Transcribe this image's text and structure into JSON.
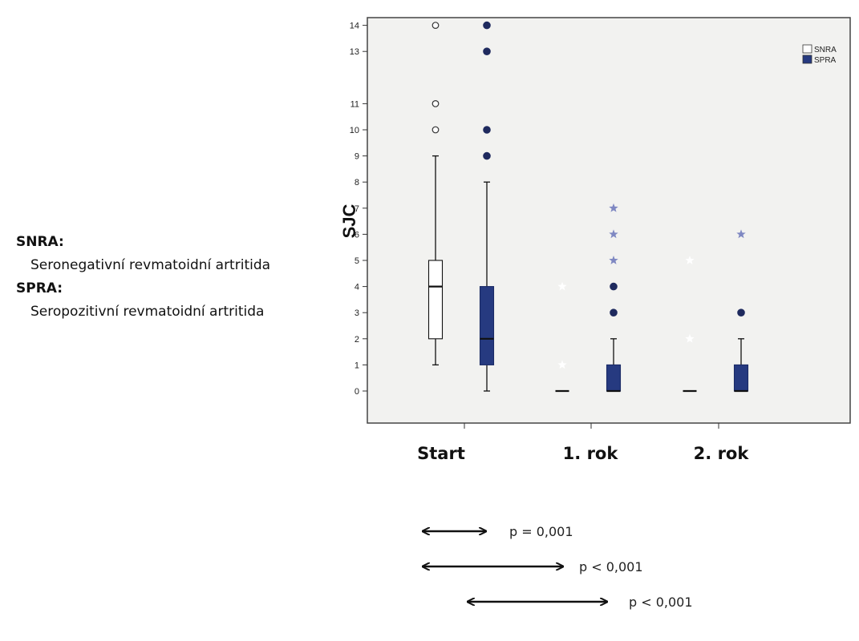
{
  "definitions": [
    {
      "term": "SNRA:",
      "description": "Seronegativní revmatoidní artritida"
    },
    {
      "term": "SPRA:",
      "description": "Seropozitivní revmatoidní artritida"
    }
  ],
  "chart_data": {
    "type": "boxplot",
    "ylabel": "SJC",
    "xlabel": "",
    "ylim": [
      -1.2,
      14.5
    ],
    "yticks": [
      0,
      1,
      2,
      3,
      4,
      5,
      6,
      7,
      8,
      9,
      10,
      11,
      13,
      14
    ],
    "categories": [
      "Start",
      "1. rok",
      "2. rok"
    ],
    "legend": {
      "position": "top-right",
      "entries": [
        "SNRA",
        "SPRA"
      ]
    },
    "colors": {
      "SNRA": "#ffffff",
      "SPRA": "#263a80",
      "plot_bg": "#f2f2f0",
      "outlier_star": "#7f88c2"
    },
    "series": [
      {
        "name": "SNRA",
        "boxes": [
          {
            "category": "Start",
            "whisker_low": 1,
            "q1": 2,
            "median": 4,
            "q3": 5,
            "whisker_high": 9,
            "outliers": [
              10,
              11,
              14
            ],
            "extremes": []
          },
          {
            "category": "1. rok",
            "whisker_low": 0,
            "q1": 0,
            "median": 0,
            "q3": 0,
            "whisker_high": 0,
            "outliers": [],
            "extremes": [
              1,
              4
            ]
          },
          {
            "category": "2. rok",
            "whisker_low": 0,
            "q1": 0,
            "median": 0,
            "q3": 0,
            "whisker_high": 0,
            "outliers": [],
            "extremes": [
              2,
              5
            ]
          }
        ]
      },
      {
        "name": "SPRA",
        "boxes": [
          {
            "category": "Start",
            "whisker_low": 0,
            "q1": 1,
            "median": 2,
            "q3": 4,
            "whisker_high": 8,
            "outliers": [
              9,
              10,
              13,
              14
            ],
            "extremes": []
          },
          {
            "category": "1. rok",
            "whisker_low": 0,
            "q1": 0,
            "median": 0,
            "q3": 1,
            "whisker_high": 2,
            "outliers": [
              3,
              4
            ],
            "extremes": [
              5,
              6,
              7
            ]
          },
          {
            "category": "2. rok",
            "whisker_low": 0,
            "q1": 0,
            "median": 0,
            "q3": 1,
            "whisker_high": 2,
            "outliers": [
              3
            ],
            "extremes": [
              6
            ]
          }
        ]
      }
    ]
  },
  "comparisons": [
    {
      "from": "Start",
      "to": "1. rok",
      "label": "p = 0,001"
    },
    {
      "from": "Start",
      "to": "2. rok",
      "label": "p < 0,001"
    },
    {
      "from": "1. rok",
      "to": "2. rok",
      "label": "p < 0,001"
    }
  ]
}
